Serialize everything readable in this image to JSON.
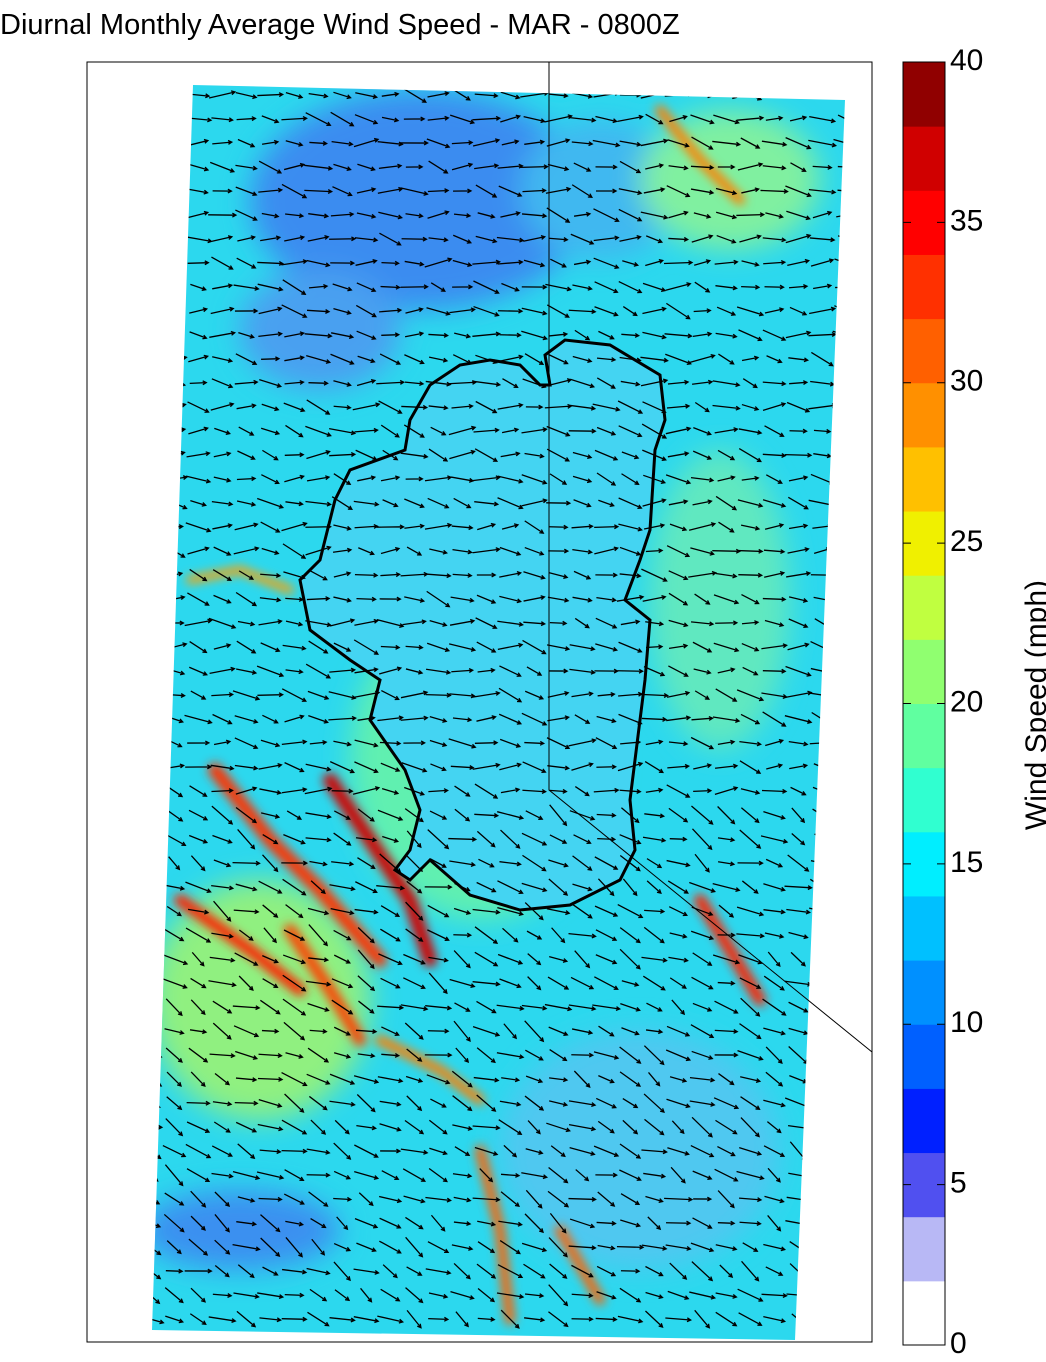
{
  "title": "Diurnal Monthly Average Wind Speed - MAR - 0800Z",
  "colorbar": {
    "label": "Wind Speed (mph)",
    "clim": [
      0,
      40
    ],
    "ticks": [
      0,
      5,
      10,
      15,
      20,
      25,
      30,
      35,
      40
    ],
    "colors": [
      "#ffffff",
      "#b8b8f5",
      "#5050f0",
      "#0020ff",
      "#0060ff",
      "#0090ff",
      "#00c0ff",
      "#00eeff",
      "#30ffd0",
      "#60ffa0",
      "#90ff70",
      "#c0ff40",
      "#f0f000",
      "#ffc000",
      "#ff9000",
      "#ff6000",
      "#ff3000",
      "#ff0000",
      "#d00000",
      "#900000"
    ]
  }
}
